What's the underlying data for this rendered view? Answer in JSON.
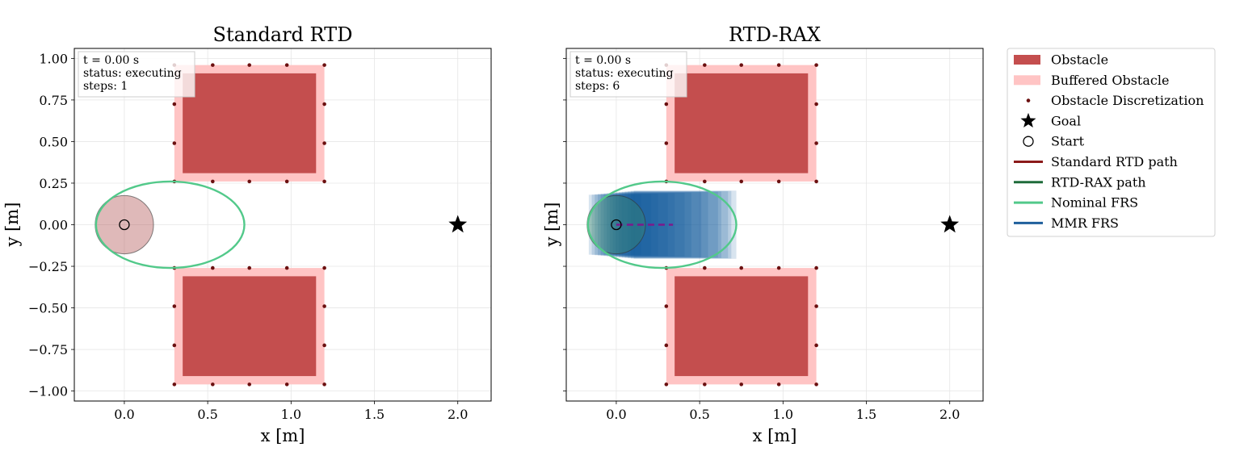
{
  "chart_data": [
    {
      "type": "scatter",
      "title": "Standard RTD",
      "xlabel": "x [m]",
      "ylabel": "y [m]",
      "xlim": [
        -0.3,
        2.2
      ],
      "ylim": [
        -1.06,
        1.06
      ],
      "grid": true,
      "xticks": [
        0.0,
        0.5,
        1.0,
        1.5,
        2.0
      ],
      "xtick_labels": [
        "0.0",
        "0.5",
        "1.0",
        "1.5",
        "2.0"
      ],
      "yticks": [
        1.0,
        0.75,
        0.5,
        0.25,
        0.0,
        -0.25,
        -0.5,
        -0.75,
        -1.0
      ],
      "ytick_labels": [
        "1.00",
        "0.75",
        "0.50",
        "0.25",
        "0.00",
        "−0.25",
        "−0.50",
        "−0.75",
        "−1.00"
      ],
      "show_ytick_labels": true,
      "status_box": [
        "t = 0.00 s",
        "status: executing",
        "steps: 1"
      ],
      "obstacles": [
        {
          "x0": 0.35,
          "x1": 1.15,
          "y0": 0.31,
          "y1": 0.91
        },
        {
          "x0": 0.35,
          "x1": 1.15,
          "y0": -0.91,
          "y1": -0.31
        }
      ],
      "buffered_obstacles": [
        {
          "x0": 0.3,
          "x1": 1.2,
          "y0": 0.26,
          "y1": 0.96
        },
        {
          "x0": 0.3,
          "x1": 1.2,
          "y0": -0.96,
          "y1": -0.26
        }
      ],
      "discretization_x": [
        0.3,
        0.53,
        0.75,
        0.975,
        1.2
      ],
      "discretization_y_top": [
        0.96,
        0.725,
        0.49,
        0.26
      ],
      "discretization_y_bottom": [
        -0.26,
        -0.49,
        -0.725,
        -0.96
      ],
      "goal": {
        "x": 2.0,
        "y": 0.0
      },
      "start": {
        "x": 0.0,
        "y": 0.0
      },
      "robot": {
        "x": 0.0,
        "y": 0.0,
        "r": 0.175,
        "fill": "#b05050"
      },
      "nominal_frs": {
        "cx": 0.275,
        "cy": 0.0,
        "rx": 0.445,
        "ry": 0.26
      },
      "mmr_frs": null,
      "path": null
    },
    {
      "type": "scatter",
      "title": "RTD-RAX",
      "xlabel": "x [m]",
      "ylabel": "y [m]",
      "xlim": [
        -0.3,
        2.2
      ],
      "ylim": [
        -1.06,
        1.06
      ],
      "grid": true,
      "xticks": [
        0.0,
        0.5,
        1.0,
        1.5,
        2.0
      ],
      "xtick_labels": [
        "0.0",
        "0.5",
        "1.0",
        "1.5",
        "2.0"
      ],
      "yticks": [
        1.0,
        0.75,
        0.5,
        0.25,
        0.0,
        -0.25,
        -0.5,
        -0.75,
        -1.0
      ],
      "ytick_labels": [],
      "show_ytick_labels": false,
      "status_box": [
        "t = 0.00 s",
        "status: executing",
        "steps: 6"
      ],
      "obstacles": [
        {
          "x0": 0.35,
          "x1": 1.15,
          "y0": 0.31,
          "y1": 0.91
        },
        {
          "x0": 0.35,
          "x1": 1.15,
          "y0": -0.91,
          "y1": -0.31
        }
      ],
      "buffered_obstacles": [
        {
          "x0": 0.3,
          "x1": 1.2,
          "y0": 0.26,
          "y1": 0.96
        },
        {
          "x0": 0.3,
          "x1": 1.2,
          "y0": -0.96,
          "y1": -0.26
        }
      ],
      "discretization_x": [
        0.3,
        0.53,
        0.75,
        0.975,
        1.2
      ],
      "discretization_y_top": [
        0.96,
        0.725,
        0.49,
        0.26
      ],
      "discretization_y_bottom": [
        -0.26,
        -0.49,
        -0.725,
        -0.96
      ],
      "goal": {
        "x": 2.0,
        "y": 0.0
      },
      "start": {
        "x": 0.0,
        "y": 0.0
      },
      "robot": {
        "x": 0.0,
        "y": 0.0,
        "r": 0.175,
        "fill": "#3a8a6a"
      },
      "nominal_frs": {
        "cx": 0.275,
        "cy": 0.0,
        "rx": 0.445,
        "ry": 0.26
      },
      "mmr_frs": {
        "x_start": -0.165,
        "x_ends": [
          0.05,
          0.1,
          0.15,
          0.2,
          0.25,
          0.3,
          0.35,
          0.4,
          0.45,
          0.5,
          0.55,
          0.6,
          0.63,
          0.66,
          0.69,
          0.71
        ],
        "half_height_start": 0.18,
        "half_height_end": 0.205
      },
      "path": {
        "x": [
          0.0,
          0.34
        ],
        "y": [
          0.0,
          0.0
        ],
        "style": "dashed",
        "color": "#7b1a8c"
      }
    }
  ],
  "legend": {
    "items": [
      {
        "label": "Obstacle",
        "kind": "patch",
        "color": "#c44e4e"
      },
      {
        "label": "Buffered Obstacle",
        "kind": "patch",
        "color": "#ffc4c4"
      },
      {
        "label": "Obstacle Discretization",
        "kind": "dot",
        "color": "#6b1010"
      },
      {
        "label": "Goal",
        "kind": "star",
        "color": "#000000"
      },
      {
        "label": "Start",
        "kind": "circle",
        "color": "#000000"
      },
      {
        "label": "Standard RTD path",
        "kind": "line",
        "color": "#8b1a1a"
      },
      {
        "label": "RTD-RAX path",
        "kind": "line",
        "color": "#1e6b3a"
      },
      {
        "label": "Nominal FRS",
        "kind": "line",
        "color": "#52c98a"
      },
      {
        "label": "MMR FRS",
        "kind": "line",
        "color": "#1f5f9c"
      }
    ]
  },
  "colors": {
    "obstacle": "#c44e4e",
    "buffered": "#ffc4c4",
    "discretization": "#6b1010",
    "nominal_frs": "#52c98a",
    "mmr_frs": "#0d559e",
    "grid": "#e6e6e6"
  }
}
